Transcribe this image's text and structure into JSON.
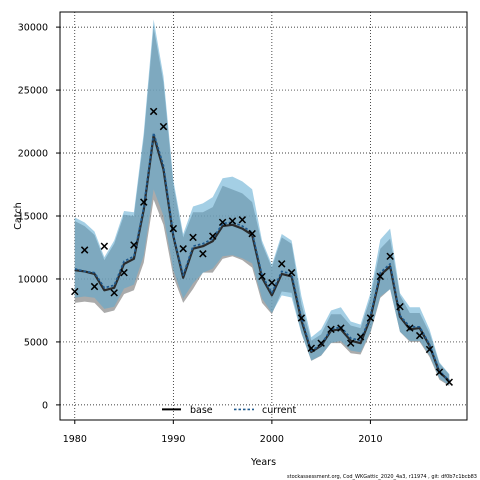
{
  "chart_data": {
    "type": "line",
    "xlabel": "Years",
    "ylabel": "Catch",
    "xlim": [
      1978.5,
      2019.8
    ],
    "ylim": [
      -1200,
      31200
    ],
    "xticks": [
      1980,
      1990,
      2000,
      2010
    ],
    "yticks": [
      0,
      5000,
      10000,
      15000,
      20000,
      25000,
      30000
    ],
    "grid": true,
    "legend_position": "bottom-center",
    "footer": "stockassessment.org, Cod_WKGattic_2020_4a3, r11974 , git: df0b7c1bcb83",
    "colors": {
      "base": "#000000",
      "current": "#1f5a8e",
      "base_band": "#8f8f8f",
      "current_band": "#5aa7d0"
    },
    "years": [
      1980,
      1981,
      1982,
      1983,
      1984,
      1985,
      1986,
      1987,
      1988,
      1989,
      1990,
      1991,
      1992,
      1993,
      1994,
      1995,
      1996,
      1997,
      1998,
      1999,
      2000,
      2001,
      2002,
      2003,
      2004,
      2005,
      2006,
      2007,
      2008,
      2009,
      2010,
      2011,
      2012,
      2013,
      2014,
      2015,
      2016,
      2017,
      2018
    ],
    "observed": [
      9000,
      12300,
      9400,
      12600,
      8900,
      10500,
      12700,
      16100,
      23300,
      22100,
      14000,
      12400,
      13300,
      12000,
      13400,
      14500,
      14600,
      14700,
      13600,
      10200,
      9700,
      11200,
      10500,
      6900,
      4500,
      4900,
      6000,
      6100,
      4900,
      5400,
      6900,
      10200,
      11800,
      7800,
      6100,
      5500,
      4400,
      2600,
      1800
    ],
    "series": [
      {
        "name": "base",
        "values": [
          10700,
          10600,
          10400,
          9100,
          9300,
          11200,
          11600,
          15500,
          21400,
          18700,
          13400,
          10100,
          12400,
          12600,
          13000,
          14200,
          14300,
          14000,
          13500,
          10100,
          8700,
          10400,
          10200,
          6700,
          4200,
          4700,
          5900,
          6000,
          5100,
          4900,
          6900,
          10300,
          11000,
          7000,
          6000,
          6100,
          4700,
          2600,
          1900
        ],
        "lower": [
          8100,
          8200,
          8100,
          7300,
          7500,
          8800,
          9100,
          11300,
          16300,
          14300,
          10200,
          8100,
          9200,
          10500,
          10500,
          11600,
          11800,
          11500,
          10900,
          8100,
          7200,
          9000,
          8900,
          5700,
          3500,
          3900,
          4900,
          4900,
          4100,
          4000,
          5700,
          8500,
          9200,
          5800,
          5000,
          5000,
          3800,
          2000,
          1500
        ],
        "upper": [
          14600,
          14200,
          13500,
          11500,
          12800,
          15100,
          15000,
          21200,
          30000,
          25600,
          17500,
          13300,
          15300,
          15300,
          15700,
          17400,
          17100,
          16800,
          16100,
          12800,
          10900,
          13300,
          12800,
          8000,
          5100,
          5600,
          7200,
          7200,
          6300,
          6100,
          8500,
          12400,
          13200,
          8700,
          7300,
          7300,
          5700,
          3300,
          2400
        ]
      },
      {
        "name": "current",
        "values": [
          10800,
          10600,
          10500,
          9300,
          9500,
          11400,
          11800,
          15700,
          21600,
          19000,
          13500,
          10300,
          12600,
          12800,
          13200,
          14400,
          14500,
          14200,
          13700,
          10300,
          8900,
          10600,
          10400,
          6900,
          4300,
          4800,
          6000,
          6200,
          5300,
          5100,
          7100,
          10500,
          11200,
          7100,
          6200,
          6200,
          4800,
          2700,
          1900
        ]
      }
    ]
  }
}
